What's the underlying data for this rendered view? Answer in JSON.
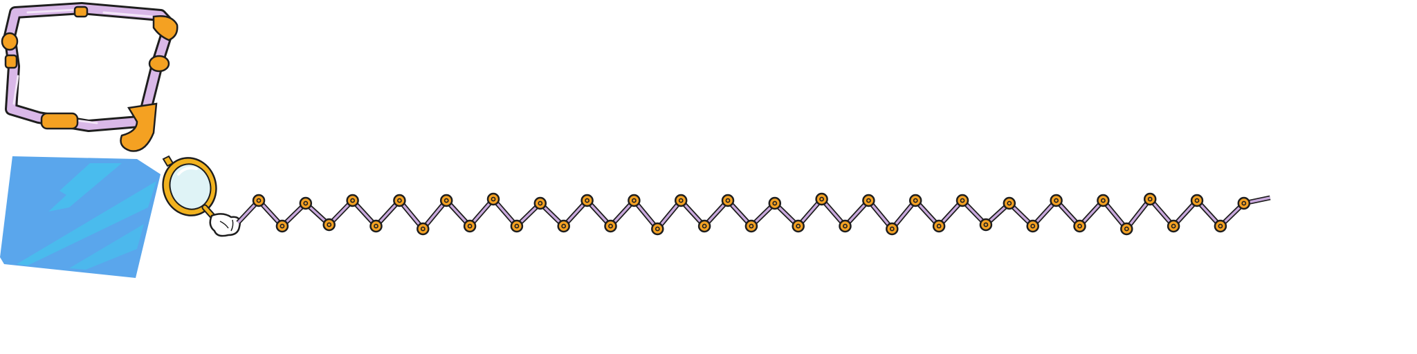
{
  "sprite_sheet": {
    "sprites": [
      {
        "name": "pipe-frame",
        "kind": "bent-tube-frame",
        "colors": {
          "tube": "#d9b8e8",
          "joint": "#f4a122",
          "outline": "#1e1e1e"
        }
      },
      {
        "name": "glass-panel",
        "kind": "translucent-glass-shard",
        "colors": {
          "glass": "#5aa6ec",
          "highlight": "#46c0ee"
        }
      },
      {
        "name": "magnifier-hand",
        "kind": "gloved-hand-magnifying-glass",
        "colors": {
          "rim": "#f1b21f",
          "lens": "#dff3f6",
          "glove": "#ffffff"
        }
      },
      {
        "name": "zigzag-chain",
        "kind": "extending-scissor-arm",
        "link_count": 43,
        "colors": {
          "bar": "#c8a8dc",
          "rivet": "#f4a122",
          "outline": "#1e1e1e"
        }
      }
    ]
  }
}
